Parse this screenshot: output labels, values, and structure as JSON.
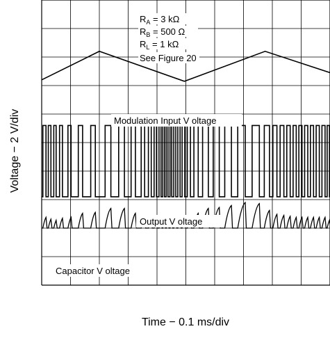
{
  "chart_data": {
    "type": "line",
    "title": "",
    "xlabel": "Time − 0.1 ms/div",
    "ylabel": "Voltage − 2 V/div",
    "grid": true,
    "x_divisions": 10,
    "y_divisions": 10,
    "x_unit_per_div": "0.1 ms",
    "y_unit_per_div": "2 V",
    "parameters": {
      "ra_label": "R",
      "ra_sub": "A",
      "ra_value": " = 3 kΩ",
      "rb_label": "R",
      "rb_sub": "B",
      "rb_value": " = 500 Ω",
      "rl_label": "R",
      "rl_sub": "L",
      "rl_value": " = 1 kΩ",
      "figure_ref": "See Figure 20"
    },
    "traces": {
      "modulation_label": "Modulation Input V  oltage",
      "output_label": "Output V oltage",
      "capacitor_label": "Capacitor V oltage"
    },
    "series": [
      {
        "name": "Modulation Input V  oltage",
        "shape": "triangle",
        "x_div": [
          0,
          2.0,
          4.95,
          7.75,
          10
        ],
        "y_div": [
          2.8,
          1.8,
          2.85,
          1.8,
          2.55
        ]
      },
      {
        "name": "Output V oltage",
        "shape": "pwm",
        "high_div": 4.4,
        "low_div": 6.9,
        "rising_edges_div": [
          0.04,
          0.23,
          0.42,
          0.62,
          0.91,
          1.27,
          1.7,
          2.2,
          2.67,
          3.1,
          3.45,
          3.7,
          3.9,
          4.07,
          4.2,
          4.32,
          4.45,
          4.58,
          4.72,
          4.87,
          5.05,
          5.28,
          5.58,
          5.95,
          6.35,
          6.8,
          7.3,
          7.72,
          8.02,
          8.27,
          8.5,
          8.72,
          8.92,
          9.12,
          9.32,
          9.52,
          9.72,
          9.9
        ],
        "falling_edges_div": [
          0.15,
          0.32,
          0.5,
          0.72,
          1.02,
          1.42,
          1.86,
          2.4,
          2.87,
          3.25,
          3.57,
          3.8,
          3.98,
          4.14,
          4.26,
          4.38,
          4.51,
          4.65,
          4.8,
          4.96,
          5.16,
          5.43,
          5.78,
          6.16,
          6.58,
          7.06,
          7.55,
          7.9,
          8.16,
          8.4,
          8.62,
          8.83,
          9.03,
          9.23,
          9.43,
          9.63,
          9.83,
          9.98
        ]
      },
      {
        "name": "Capacitor V oltage",
        "shape": "sawtooth",
        "high_div": 6.5,
        "low_div": 8.0
      }
    ]
  }
}
